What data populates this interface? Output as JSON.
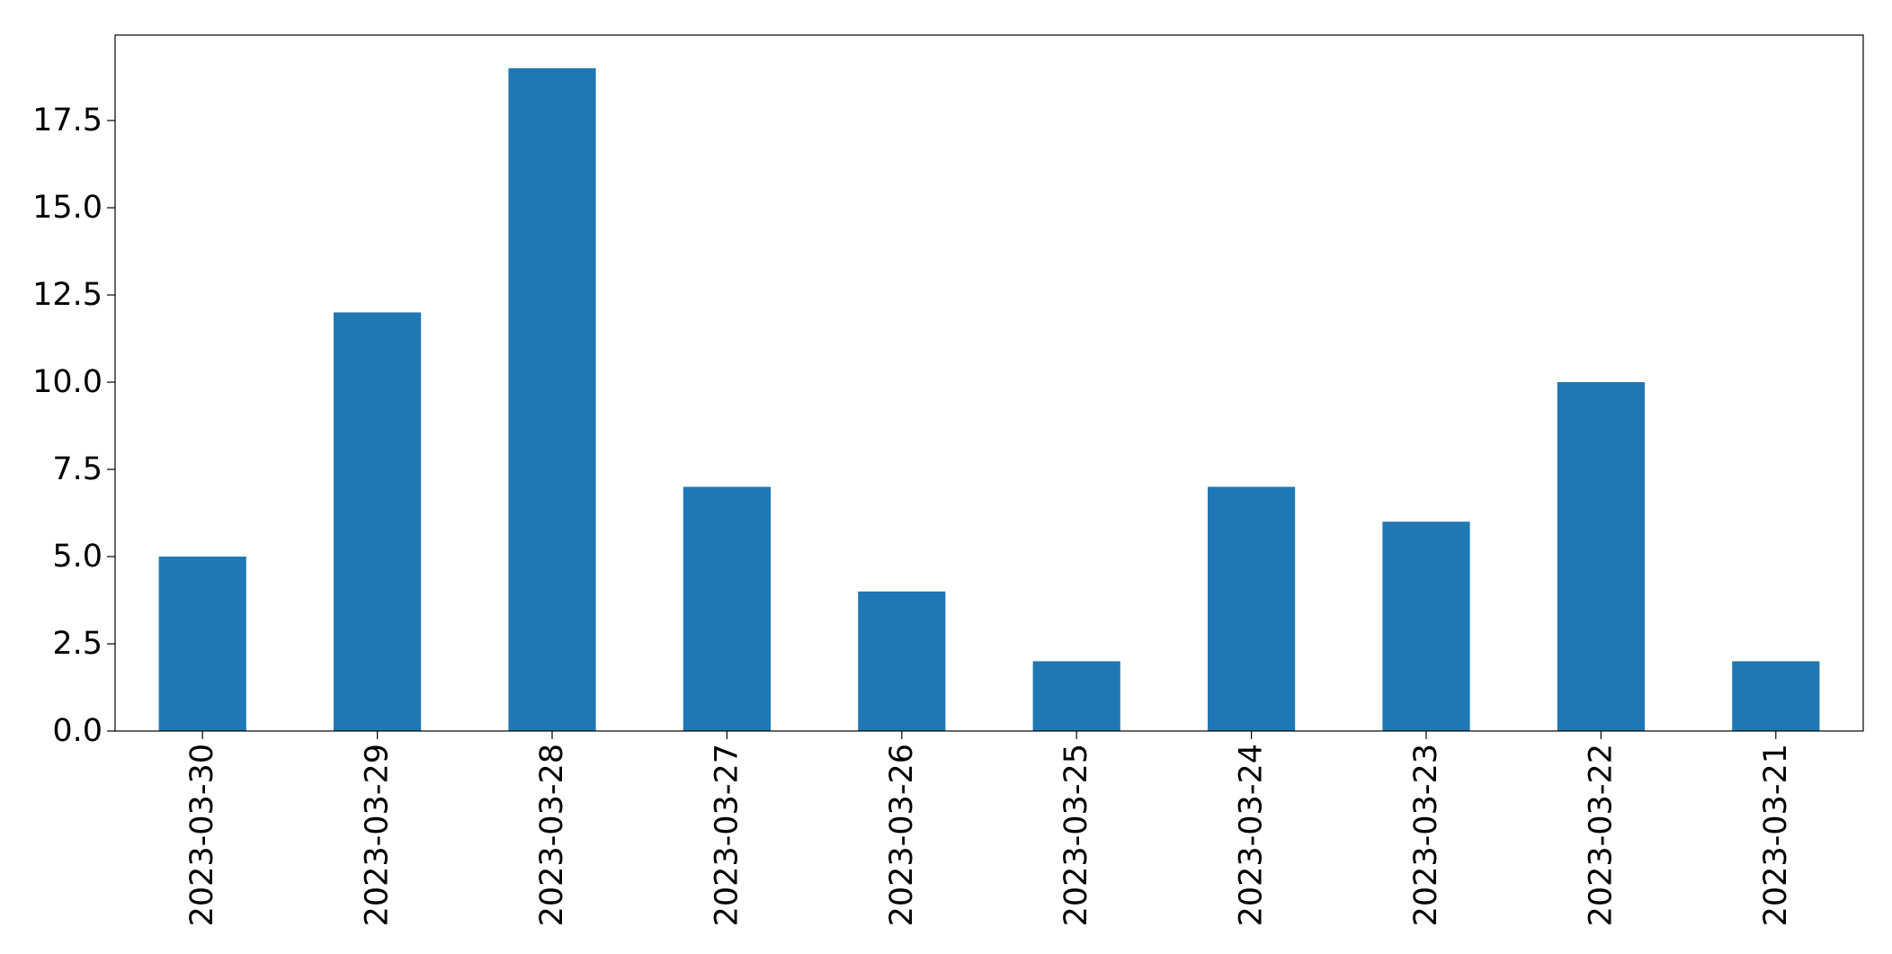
{
  "chart_data": {
    "type": "bar",
    "categories": [
      "2023-03-30",
      "2023-03-29",
      "2023-03-28",
      "2023-03-27",
      "2023-03-26",
      "2023-03-25",
      "2023-03-24",
      "2023-03-23",
      "2023-03-22",
      "2023-03-21"
    ],
    "values": [
      5,
      12,
      19,
      7,
      4,
      2,
      7,
      6,
      10,
      2
    ],
    "title": "",
    "xlabel": "",
    "ylabel": "",
    "ylim": [
      0,
      19.95
    ],
    "yticks": [
      "0.0",
      "2.5",
      "5.0",
      "7.5",
      "10.0",
      "12.5",
      "15.0",
      "17.5"
    ],
    "ytick_values": [
      0,
      2.5,
      5,
      7.5,
      10,
      12.5,
      15,
      17.5
    ],
    "bar_color": "#1f77b4",
    "grid": false,
    "legend": "none",
    "xtick_rotation": "vertical"
  }
}
